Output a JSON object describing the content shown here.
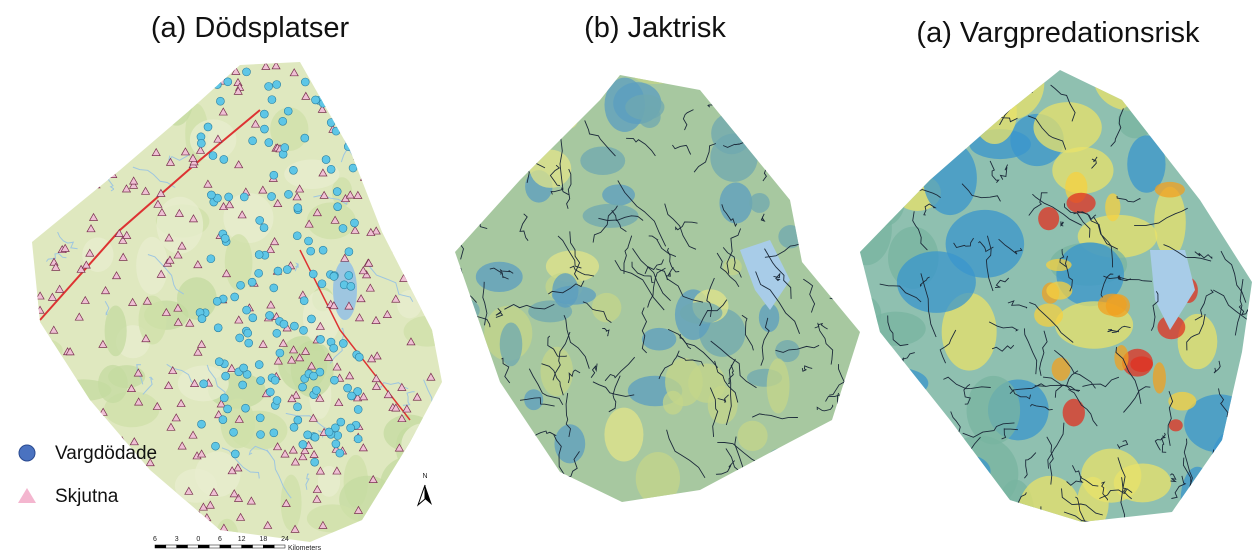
{
  "panels": [
    {
      "title": "(a) Dödsplatser"
    },
    {
      "title": "(b) Jaktrisk"
    },
    {
      "title": "(a) Vargpredationsrisk"
    }
  ],
  "legend": [
    {
      "label": "Vargdödade",
      "color": "#4a90c8"
    },
    {
      "label": "Skjutna",
      "color": "#f4b6cf"
    }
  ],
  "scale_bar": {
    "labels": [
      "6",
      "3",
      "0",
      "6",
      "12",
      "18",
      "24"
    ],
    "unit": "Kilometers"
  },
  "north_arrow": {
    "label": "N"
  }
}
